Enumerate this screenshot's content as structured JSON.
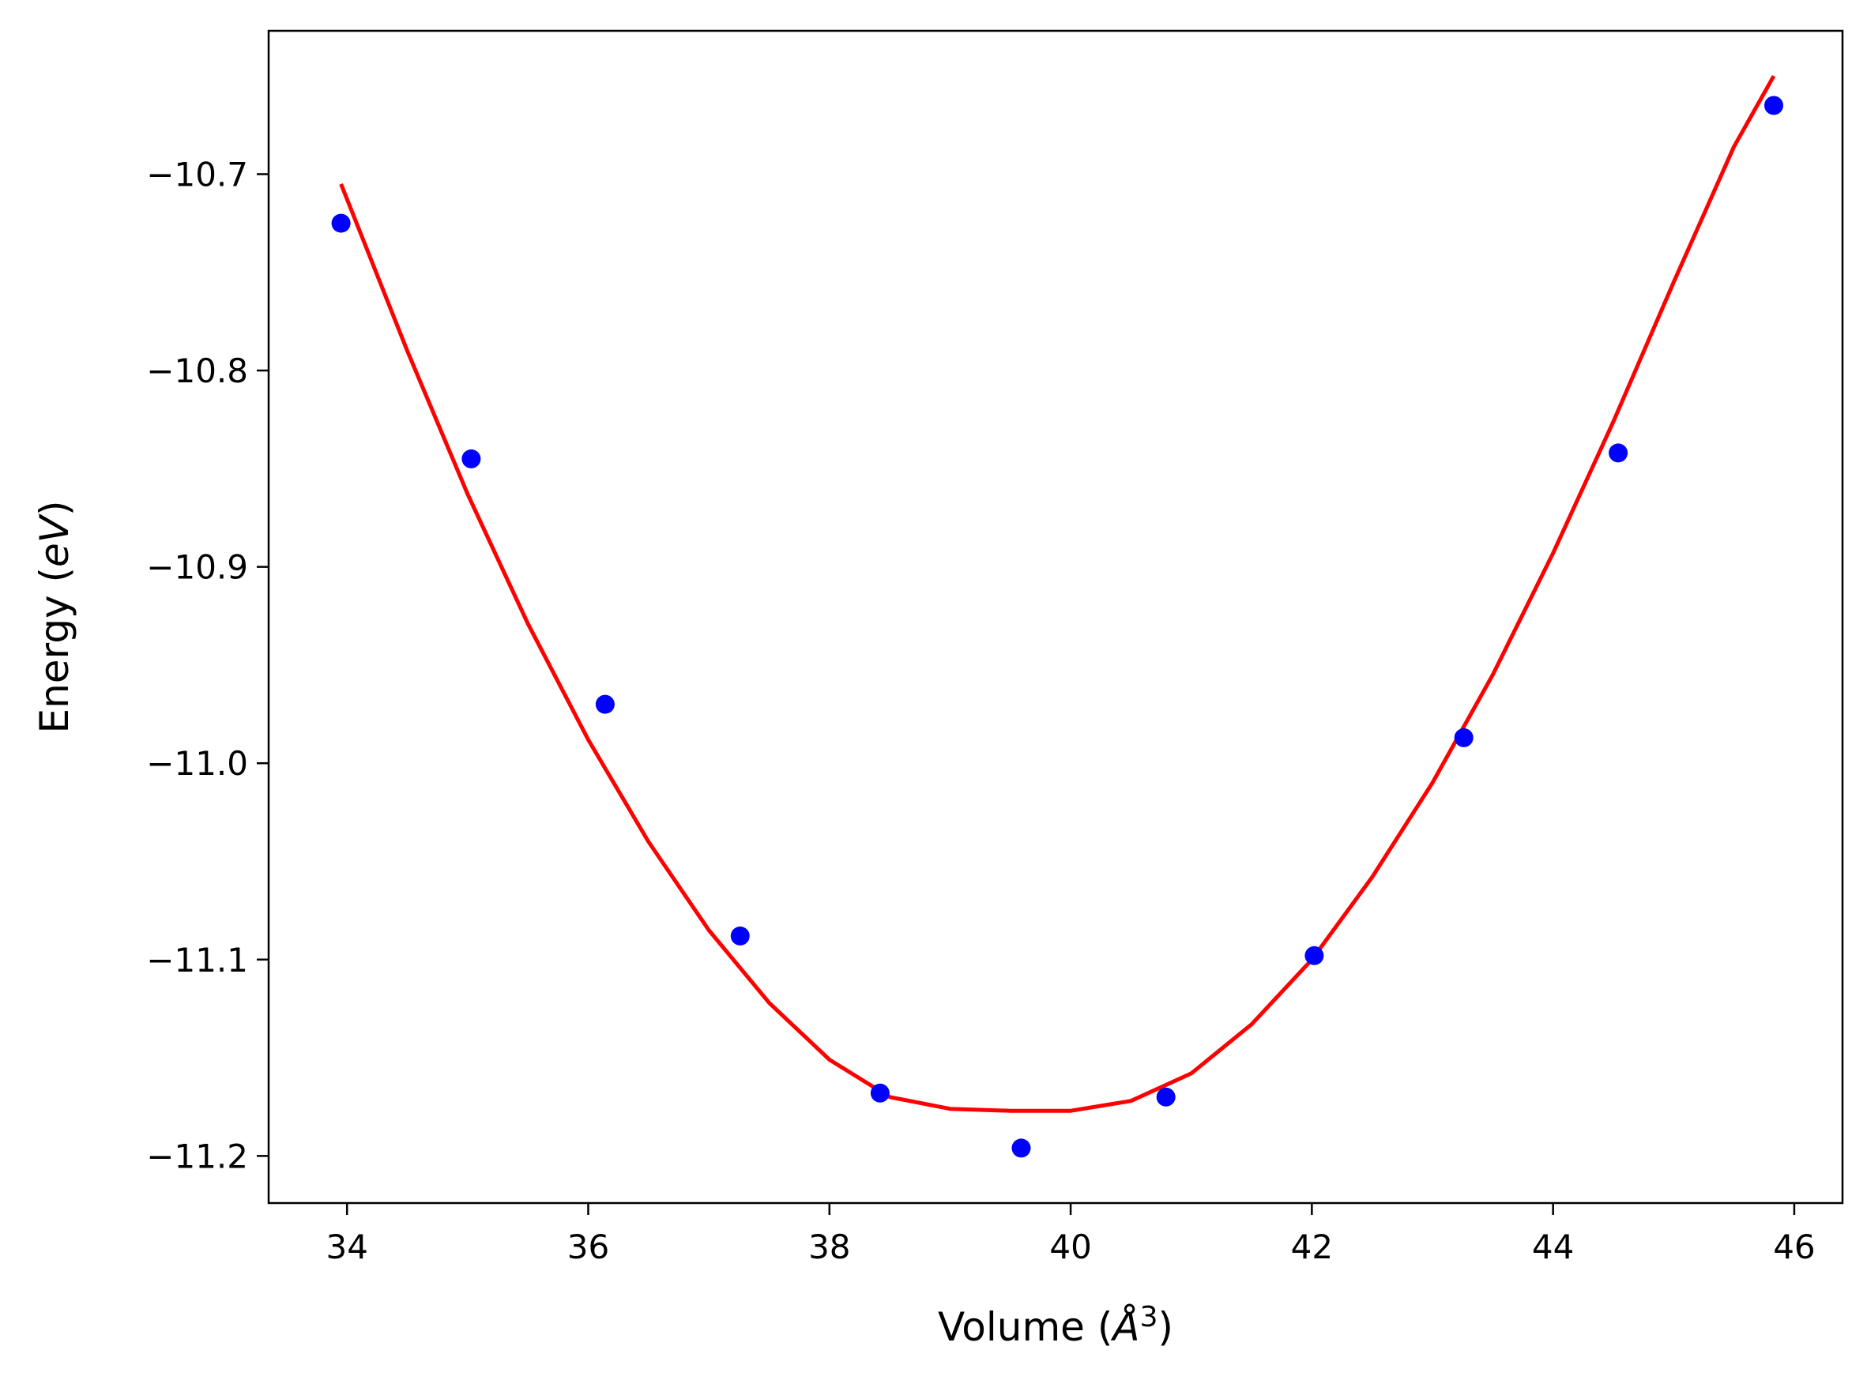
{
  "chart_data": {
    "type": "scatter",
    "xlabel": "Volume (Å³)",
    "xlabel_parts": {
      "prefix": "Volume (",
      "unit": "Å",
      "power": "3",
      "suffix": ")"
    },
    "ylabel": "Energy (eV)",
    "ylabel_parts": {
      "prefix": "Energy (",
      "unit": "eV",
      "suffix": ")"
    },
    "xlim": [
      33.35,
      46.4
    ],
    "ylim": [
      -11.224,
      -10.627
    ],
    "x_ticks": [
      34,
      36,
      38,
      40,
      42,
      44,
      46
    ],
    "x_tick_labels": [
      "34",
      "36",
      "38",
      "40",
      "42",
      "44",
      "46"
    ],
    "y_ticks": [
      -10.7,
      -10.8,
      -10.9,
      -11.0,
      -11.1,
      -11.2
    ],
    "y_tick_labels": [
      "−10.7",
      "−10.8",
      "−10.9",
      "−11.0",
      "−11.1",
      "−11.2"
    ],
    "grid": false,
    "legend": "none",
    "series": [
      {
        "kind": "points",
        "color": "#0000ff",
        "x": [
          33.95,
          35.03,
          36.14,
          37.26,
          38.42,
          39.59,
          40.79,
          42.02,
          43.26,
          44.54,
          45.83
        ],
        "y": [
          -10.725,
          -10.845,
          -10.97,
          -11.088,
          -11.168,
          -11.196,
          -11.17,
          -11.098,
          -10.987,
          -10.842,
          -10.665
        ]
      },
      {
        "kind": "line",
        "color": "#ff0000",
        "x": [
          33.95,
          34.5,
          35.0,
          35.5,
          36.0,
          36.5,
          37.0,
          37.5,
          38.0,
          38.5,
          39.0,
          39.5,
          39.75,
          40.0,
          40.5,
          41.0,
          41.5,
          42.0,
          42.5,
          43.0,
          43.5,
          44.0,
          44.5,
          45.0,
          45.5,
          45.83
        ],
        "y": [
          -10.705,
          -10.79,
          -10.863,
          -10.929,
          -10.988,
          -11.04,
          -11.085,
          -11.122,
          -11.151,
          -11.17,
          -11.176,
          -11.177,
          -11.177,
          -11.177,
          -11.172,
          -11.158,
          -11.133,
          -11.1,
          -11.058,
          -11.01,
          -10.955,
          -10.893,
          -10.826,
          -10.755,
          -10.686,
          -10.65
        ]
      }
    ]
  }
}
